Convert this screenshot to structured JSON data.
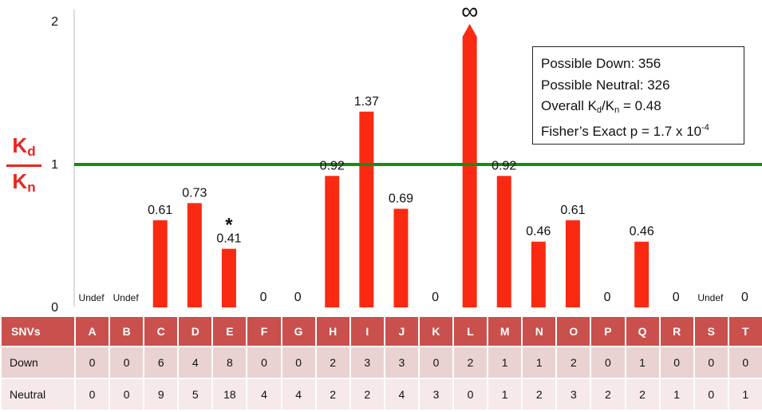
{
  "chart_data": {
    "type": "bar",
    "categories": [
      "A",
      "B",
      "C",
      "D",
      "E",
      "F",
      "G",
      "H",
      "I",
      "J",
      "K",
      "L",
      "M",
      "N",
      "O",
      "P",
      "Q",
      "R",
      "S",
      "T"
    ],
    "values": [
      null,
      null,
      0.61,
      0.73,
      0.41,
      0,
      0,
      0.92,
      1.37,
      0.69,
      0,
      "∞",
      0.92,
      0.46,
      0.61,
      0,
      0.46,
      0,
      null,
      0
    ],
    "data_labels": [
      "Undef",
      "Undef",
      "0.61",
      "0.73",
      "0.41",
      "0",
      "0",
      "0.92",
      "1.37",
      "0.69",
      "0",
      "∞",
      "0.92",
      "0.46",
      "0.61",
      "0",
      "0.46",
      "0",
      "Undef",
      "0"
    ],
    "annotation_star": {
      "category": "E",
      "text": "*"
    },
    "ylim": [
      0,
      2
    ],
    "yticks": [
      "0",
      "1",
      "2"
    ],
    "reference_line": {
      "y": 1,
      "color": "#1a8a1a"
    },
    "bar_color": "#fa2a12",
    "grid": false
  },
  "ylabel": {
    "numerator": "K",
    "numerator_sub": "d",
    "denominator": "K",
    "denominator_sub": "n"
  },
  "stats": {
    "line1": "Possible Down: 356",
    "line2": "Possible Neutral: 326",
    "line3_prefix": "Overall K",
    "line3_sub1": "d",
    "line3_mid": "/K",
    "line3_sub2": "n",
    "line3_suffix": " = 0.48",
    "line4_prefix": "Fisher’s Exact p = 1.7 x 10",
    "line4_sup": "-4"
  },
  "table": {
    "header": "SNVs",
    "columns": [
      "A",
      "B",
      "C",
      "D",
      "E",
      "F",
      "G",
      "H",
      "I",
      "J",
      "K",
      "L",
      "M",
      "N",
      "O",
      "P",
      "Q",
      "R",
      "S",
      "T"
    ],
    "rows": [
      {
        "label": "Down",
        "values": [
          "0",
          "0",
          "6",
          "4",
          "8",
          "0",
          "0",
          "2",
          "3",
          "3",
          "0",
          "2",
          "1",
          "1",
          "2",
          "0",
          "1",
          "0",
          "0",
          "0"
        ]
      },
      {
        "label": "Neutral",
        "values": [
          "0",
          "0",
          "9",
          "5",
          "18",
          "4",
          "4",
          "2",
          "2",
          "4",
          "3",
          "0",
          "1",
          "2",
          "3",
          "2",
          "2",
          "1",
          "0",
          "1"
        ]
      }
    ]
  }
}
